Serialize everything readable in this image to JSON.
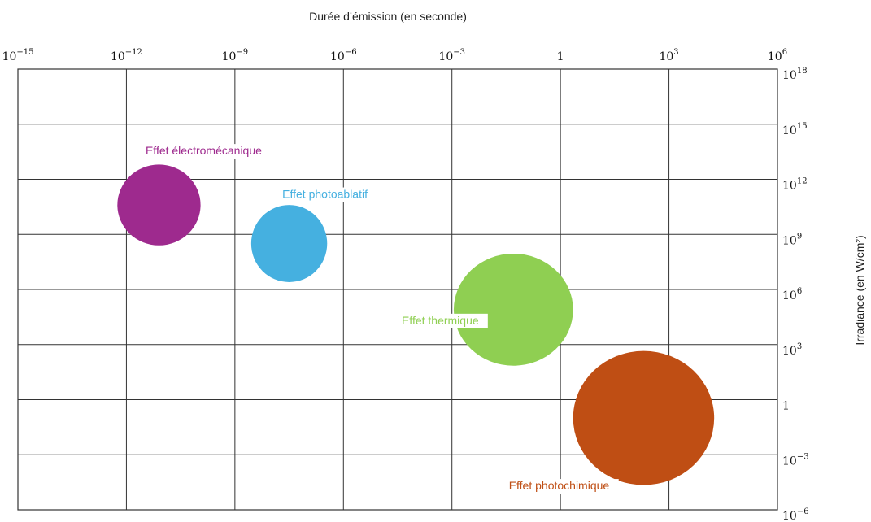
{
  "chart_data": {
    "type": "scatter",
    "title": "Durée d’émission (en seconde)",
    "xlabel": "Durée d’émission (en seconde)",
    "ylabel": "Irradiance (en W/cm²)",
    "x_scale": "log10",
    "y_scale": "log10",
    "x_exponent_range": [
      -15,
      6
    ],
    "y_exponent_range": [
      -6,
      18
    ],
    "x_ticks": [
      {
        "base": "10",
        "exp": "−15",
        "exponent": -15
      },
      {
        "base": "10",
        "exp": "−12",
        "exponent": -12
      },
      {
        "base": "10",
        "exp": "−9",
        "exponent": -9
      },
      {
        "base": "10",
        "exp": "−6",
        "exponent": -6
      },
      {
        "base": "10",
        "exp": "−3",
        "exponent": -3
      },
      {
        "base": "1",
        "exp": "",
        "exponent": 0
      },
      {
        "base": "10",
        "exp": "3",
        "exponent": 3
      },
      {
        "base": "10",
        "exp": "6",
        "exponent": 6
      }
    ],
    "y_ticks": [
      {
        "base": "10",
        "exp": "18",
        "exponent": 18
      },
      {
        "base": "10",
        "exp": "15",
        "exponent": 15
      },
      {
        "base": "10",
        "exp": "12",
        "exponent": 12
      },
      {
        "base": "10",
        "exp": "9",
        "exponent": 9
      },
      {
        "base": "10",
        "exp": "6",
        "exponent": 6
      },
      {
        "base": "10",
        "exp": "3",
        "exponent": 3
      },
      {
        "base": "1",
        "exp": "",
        "exponent": 0
      },
      {
        "base": "10",
        "exp": "−3",
        "exponent": -3
      },
      {
        "base": "10",
        "exp": "−6",
        "exponent": -6
      }
    ],
    "grid": true,
    "series": [
      {
        "name": "Effet électromécanique",
        "color": "#9e2a8e",
        "x_exponent": -11.1,
        "y_exponent": 10.6,
        "x_span": 2.3,
        "y_span": 4.4
      },
      {
        "name": "Effet photoablatif",
        "color": "#45b0e0",
        "x_exponent": -7.5,
        "y_exponent": 8.5,
        "x_span": 2.1,
        "y_span": 4.2
      },
      {
        "name": "Effet thermique",
        "color": "#8fcf52",
        "x_exponent": -1.3,
        "y_exponent": 4.9,
        "x_span": 3.3,
        "y_span": 6.1
      },
      {
        "name": "Effet photochimique",
        "color": "#bf4e14",
        "x_exponent": 2.3,
        "y_exponent": -1.0,
        "x_span": 3.9,
        "y_span": 7.3
      }
    ]
  }
}
